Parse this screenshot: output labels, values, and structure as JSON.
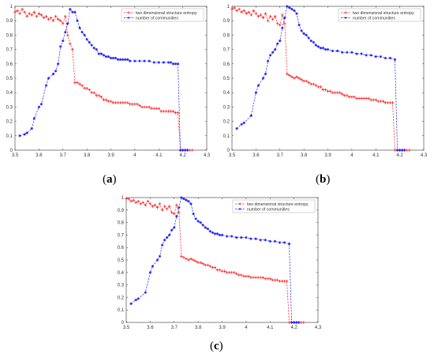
{
  "figure": {
    "captions": [
      {
        "open": "(",
        "letter": "a",
        "close": ")"
      },
      {
        "open": "(",
        "letter": "b",
        "close": ")"
      },
      {
        "open": "(",
        "letter": "c",
        "close": ")"
      }
    ]
  },
  "colors": {
    "series1": "#ff2020",
    "series2": "#1a1aff",
    "axis": "#333333"
  },
  "chart_data": [
    {
      "type": "line",
      "id": "a",
      "title": "",
      "xlabel": "",
      "ylabel": "",
      "xlim": [
        3.5,
        4.3
      ],
      "ylim": [
        0,
        1
      ],
      "xticks": [
        "3.5",
        "3.6",
        "3.7",
        "3.8",
        "3.9",
        "4",
        "4.1",
        "4.2",
        "4.3"
      ],
      "yticks": [
        "0",
        "0.1",
        "0.2",
        "0.3",
        "0.4",
        "0.5",
        "0.6",
        "0.7",
        "0.8",
        "0.9",
        "1"
      ],
      "legend_position": "top-right",
      "grid": false,
      "series": [
        {
          "name": "two dimensional structure entropy",
          "color": "#ff2020",
          "marker": "+",
          "x": [
            3.5,
            3.51,
            3.52,
            3.53,
            3.54,
            3.55,
            3.56,
            3.57,
            3.58,
            3.59,
            3.6,
            3.61,
            3.62,
            3.63,
            3.64,
            3.65,
            3.66,
            3.67,
            3.68,
            3.69,
            3.7,
            3.71,
            3.72,
            3.73,
            3.74,
            3.75,
            3.76,
            3.77,
            3.78,
            3.79,
            3.8,
            3.81,
            3.82,
            3.83,
            3.84,
            3.85,
            3.86,
            3.87,
            3.88,
            3.89,
            3.9,
            3.91,
            3.92,
            3.93,
            3.94,
            3.95,
            3.96,
            3.97,
            3.98,
            3.99,
            4.0,
            4.01,
            4.02,
            4.03,
            4.04,
            4.05,
            4.06,
            4.07,
            4.08,
            4.09,
            4.1,
            4.11,
            4.12,
            4.13,
            4.14,
            4.15,
            4.16,
            4.17,
            4.18,
            4.19,
            4.2,
            4.21,
            4.22,
            4.23,
            4.24
          ],
          "y": [
            0.96,
            0.97,
            0.95,
            0.98,
            0.96,
            0.93,
            0.95,
            0.94,
            0.96,
            0.93,
            0.95,
            0.94,
            0.92,
            0.93,
            0.91,
            0.92,
            0.9,
            0.93,
            0.91,
            0.9,
            0.88,
            0.93,
            0.8,
            0.74,
            0.7,
            0.47,
            0.47,
            0.46,
            0.45,
            0.43,
            0.43,
            0.42,
            0.4,
            0.4,
            0.38,
            0.38,
            0.37,
            0.35,
            0.35,
            0.34,
            0.34,
            0.33,
            0.33,
            0.33,
            0.33,
            0.33,
            0.33,
            0.33,
            0.32,
            0.32,
            0.32,
            0.32,
            0.31,
            0.3,
            0.3,
            0.3,
            0.3,
            0.29,
            0.29,
            0.29,
            0.29,
            0.27,
            0.27,
            0.27,
            0.27,
            0.27,
            0.27,
            0.26,
            0.26,
            0.0,
            0.0,
            0.0,
            0.0,
            0.0,
            0.0
          ]
        },
        {
          "name": "number of communities",
          "color": "#1a1aff",
          "marker": "*",
          "x": [
            3.52,
            3.54,
            3.55,
            3.57,
            3.58,
            3.6,
            3.61,
            3.63,
            3.64,
            3.66,
            3.67,
            3.68,
            3.69,
            3.7,
            3.71,
            3.72,
            3.73,
            3.74,
            3.75,
            3.76,
            3.77,
            3.78,
            3.79,
            3.8,
            3.81,
            3.82,
            3.83,
            3.84,
            3.85,
            3.86,
            3.87,
            3.88,
            3.89,
            3.9,
            3.91,
            3.92,
            3.93,
            3.94,
            3.95,
            3.96,
            3.97,
            3.98,
            4.0,
            4.02,
            4.04,
            4.06,
            4.08,
            4.1,
            4.12,
            4.14,
            4.15,
            4.16,
            4.17,
            4.18,
            4.19,
            4.2,
            4.21,
            4.22
          ],
          "y": [
            0.1,
            0.11,
            0.12,
            0.15,
            0.22,
            0.3,
            0.32,
            0.45,
            0.5,
            0.53,
            0.55,
            0.6,
            0.72,
            0.76,
            0.82,
            0.88,
            0.98,
            0.96,
            0.96,
            0.9,
            0.85,
            0.82,
            0.8,
            0.77,
            0.75,
            0.73,
            0.71,
            0.7,
            0.67,
            0.67,
            0.66,
            0.65,
            0.65,
            0.64,
            0.64,
            0.64,
            0.63,
            0.63,
            0.63,
            0.63,
            0.63,
            0.62,
            0.62,
            0.62,
            0.62,
            0.62,
            0.61,
            0.61,
            0.61,
            0.61,
            0.61,
            0.6,
            0.6,
            0.6,
            0.0,
            0.0,
            0.0,
            0.0
          ]
        }
      ]
    },
    {
      "type": "line",
      "id": "b",
      "title": "",
      "xlabel": "",
      "ylabel": "",
      "xlim": [
        3.5,
        4.3
      ],
      "ylim": [
        0,
        1
      ],
      "xticks": [
        "3.5",
        "3.6",
        "3.7",
        "3.8",
        "3.9",
        "4",
        "4.1",
        "4.2",
        "4.3"
      ],
      "yticks": [
        "0",
        "0.1",
        "0.2",
        "0.3",
        "0.4",
        "0.5",
        "0.6",
        "0.7",
        "0.8",
        "0.9",
        "1"
      ],
      "legend_position": "top-right",
      "grid": false,
      "series": [
        {
          "name": "two dimensional structure entropy",
          "color": "#ff2020",
          "marker": "+",
          "x": [
            3.5,
            3.51,
            3.52,
            3.53,
            3.54,
            3.55,
            3.56,
            3.57,
            3.58,
            3.59,
            3.6,
            3.61,
            3.62,
            3.63,
            3.64,
            3.65,
            3.66,
            3.67,
            3.68,
            3.69,
            3.7,
            3.71,
            3.72,
            3.73,
            3.74,
            3.75,
            3.76,
            3.77,
            3.78,
            3.79,
            3.8,
            3.81,
            3.82,
            3.83,
            3.84,
            3.85,
            3.86,
            3.87,
            3.88,
            3.89,
            3.9,
            3.91,
            3.92,
            3.93,
            3.94,
            3.95,
            3.96,
            3.97,
            3.98,
            3.99,
            4.0,
            4.01,
            4.02,
            4.03,
            4.04,
            4.05,
            4.06,
            4.07,
            4.08,
            4.09,
            4.1,
            4.11,
            4.12,
            4.13,
            4.14,
            4.15,
            4.16,
            4.17,
            4.18,
            4.19,
            4.2,
            4.21,
            4.22,
            4.23,
            4.24
          ],
          "y": [
            0.98,
            0.99,
            0.97,
            0.98,
            0.96,
            0.97,
            0.95,
            0.96,
            0.94,
            0.97,
            0.95,
            0.93,
            0.94,
            0.92,
            0.95,
            0.9,
            0.93,
            0.91,
            0.93,
            0.88,
            0.87,
            0.94,
            0.88,
            0.53,
            0.52,
            0.51,
            0.5,
            0.51,
            0.5,
            0.49,
            0.48,
            0.48,
            0.47,
            0.46,
            0.46,
            0.45,
            0.44,
            0.44,
            0.42,
            0.42,
            0.41,
            0.41,
            0.4,
            0.4,
            0.4,
            0.4,
            0.39,
            0.38,
            0.38,
            0.37,
            0.37,
            0.37,
            0.36,
            0.36,
            0.36,
            0.36,
            0.36,
            0.36,
            0.35,
            0.35,
            0.35,
            0.34,
            0.34,
            0.34,
            0.33,
            0.33,
            0.33,
            0.33,
            0.0,
            0.0,
            0.0,
            0.0,
            0.0,
            0.0,
            0.0
          ]
        },
        {
          "name": "number of communities",
          "color": "#1a1aff",
          "marker": "*",
          "x": [
            3.52,
            3.54,
            3.55,
            3.58,
            3.6,
            3.61,
            3.63,
            3.64,
            3.65,
            3.66,
            3.67,
            3.68,
            3.69,
            3.7,
            3.71,
            3.72,
            3.73,
            3.74,
            3.75,
            3.76,
            3.77,
            3.78,
            3.79,
            3.8,
            3.81,
            3.82,
            3.83,
            3.84,
            3.85,
            3.86,
            3.87,
            3.88,
            3.89,
            3.9,
            3.92,
            3.94,
            3.96,
            3.98,
            4.0,
            4.02,
            4.04,
            4.06,
            4.08,
            4.1,
            4.12,
            4.14,
            4.16,
            4.18,
            4.19,
            4.2,
            4.21,
            4.22
          ],
          "y": [
            0.15,
            0.18,
            0.19,
            0.24,
            0.4,
            0.45,
            0.5,
            0.53,
            0.62,
            0.66,
            0.68,
            0.7,
            0.74,
            0.76,
            0.85,
            0.92,
            1.0,
            0.99,
            0.98,
            0.97,
            0.95,
            0.87,
            0.83,
            0.81,
            0.8,
            0.78,
            0.76,
            0.75,
            0.73,
            0.72,
            0.71,
            0.71,
            0.7,
            0.7,
            0.69,
            0.69,
            0.68,
            0.68,
            0.68,
            0.67,
            0.67,
            0.66,
            0.66,
            0.65,
            0.65,
            0.64,
            0.64,
            0.63,
            0.0,
            0.0,
            0.0,
            0.0
          ]
        }
      ]
    },
    {
      "type": "line",
      "id": "c",
      "title": "",
      "xlabel": "",
      "ylabel": "",
      "xlim": [
        3.5,
        4.3
      ],
      "ylim": [
        0,
        1
      ],
      "xticks": [
        "3.5",
        "3.6",
        "3.7",
        "3.8",
        "3.9",
        "4",
        "4.1",
        "4.2",
        "4.3"
      ],
      "yticks": [
        "0",
        "0.1",
        "0.2",
        "0.3",
        "0.4",
        "0.5",
        "0.6",
        "0.7",
        "0.8",
        "0.9",
        "1"
      ],
      "legend_position": "top-right",
      "grid": false,
      "series": [
        {
          "name": "two dimensional structure entropy",
          "color": "#ff2020",
          "marker": "+",
          "x": [
            3.5,
            3.51,
            3.52,
            3.53,
            3.54,
            3.55,
            3.56,
            3.57,
            3.58,
            3.59,
            3.6,
            3.61,
            3.62,
            3.63,
            3.64,
            3.65,
            3.66,
            3.67,
            3.68,
            3.69,
            3.7,
            3.71,
            3.72,
            3.73,
            3.74,
            3.75,
            3.76,
            3.77,
            3.78,
            3.79,
            3.8,
            3.81,
            3.82,
            3.83,
            3.84,
            3.85,
            3.86,
            3.87,
            3.88,
            3.89,
            3.9,
            3.91,
            3.92,
            3.93,
            3.94,
            3.95,
            3.96,
            3.97,
            3.98,
            3.99,
            4.0,
            4.01,
            4.02,
            4.03,
            4.04,
            4.05,
            4.06,
            4.07,
            4.08,
            4.09,
            4.1,
            4.11,
            4.12,
            4.13,
            4.14,
            4.15,
            4.16,
            4.17,
            4.18,
            4.19,
            4.2,
            4.21,
            4.22,
            4.23,
            4.24
          ],
          "y": [
            0.99,
            0.99,
            0.97,
            0.98,
            0.96,
            0.97,
            0.95,
            0.96,
            0.94,
            0.97,
            0.95,
            0.93,
            0.94,
            0.92,
            0.95,
            0.9,
            0.93,
            0.91,
            0.93,
            0.88,
            0.87,
            0.94,
            0.88,
            0.53,
            0.52,
            0.51,
            0.5,
            0.51,
            0.5,
            0.49,
            0.48,
            0.48,
            0.47,
            0.46,
            0.46,
            0.45,
            0.44,
            0.44,
            0.42,
            0.42,
            0.41,
            0.41,
            0.4,
            0.4,
            0.4,
            0.4,
            0.39,
            0.38,
            0.38,
            0.37,
            0.37,
            0.37,
            0.36,
            0.36,
            0.36,
            0.36,
            0.36,
            0.36,
            0.35,
            0.35,
            0.35,
            0.34,
            0.34,
            0.34,
            0.33,
            0.33,
            0.33,
            0.33,
            0.0,
            0.0,
            0.0,
            0.0,
            0.0,
            0.0,
            0.0
          ]
        },
        {
          "name": "number of communities",
          "color": "#1a1aff",
          "marker": "*",
          "x": [
            3.52,
            3.54,
            3.55,
            3.58,
            3.6,
            3.61,
            3.63,
            3.64,
            3.65,
            3.66,
            3.67,
            3.68,
            3.69,
            3.7,
            3.71,
            3.72,
            3.73,
            3.74,
            3.75,
            3.76,
            3.77,
            3.78,
            3.79,
            3.8,
            3.81,
            3.82,
            3.83,
            3.84,
            3.85,
            3.86,
            3.87,
            3.88,
            3.89,
            3.9,
            3.92,
            3.94,
            3.96,
            3.98,
            4.0,
            4.02,
            4.04,
            4.06,
            4.08,
            4.1,
            4.12,
            4.14,
            4.16,
            4.18,
            4.19,
            4.2,
            4.21,
            4.22
          ],
          "y": [
            0.15,
            0.18,
            0.19,
            0.24,
            0.4,
            0.45,
            0.5,
            0.53,
            0.62,
            0.66,
            0.68,
            0.7,
            0.74,
            0.76,
            0.85,
            0.92,
            1.0,
            0.99,
            0.98,
            0.97,
            0.95,
            0.87,
            0.83,
            0.81,
            0.8,
            0.78,
            0.76,
            0.75,
            0.73,
            0.72,
            0.71,
            0.71,
            0.7,
            0.7,
            0.69,
            0.69,
            0.68,
            0.68,
            0.68,
            0.67,
            0.67,
            0.66,
            0.66,
            0.65,
            0.65,
            0.64,
            0.64,
            0.63,
            0.0,
            0.0,
            0.0,
            0.0
          ]
        }
      ]
    }
  ]
}
